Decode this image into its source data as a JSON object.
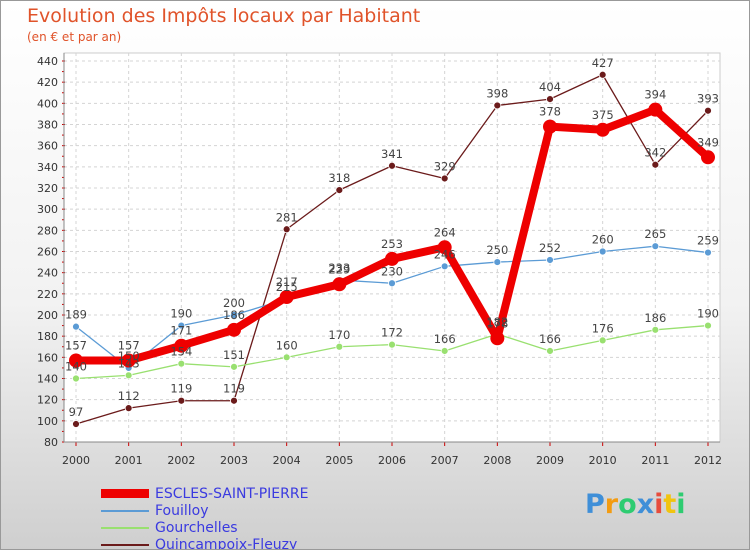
{
  "chart_data": {
    "type": "line",
    "title": "Evolution des Impôts locaux par Habitant",
    "subtitle": "(en € et par an)",
    "xlabel": "",
    "ylabel": "",
    "categories": [
      "2000",
      "2001",
      "2002",
      "2003",
      "2004",
      "2005",
      "2006",
      "2007",
      "2008",
      "2009",
      "2010",
      "2011",
      "2012"
    ],
    "ylim": [
      80,
      440
    ],
    "ytick_step": 20,
    "grid": true,
    "series": [
      {
        "name": "Quincampoix-Fleuzy",
        "color": "#6b1b1b",
        "width": 1.3,
        "marker": 3.5,
        "values": [
          97,
          112,
          119,
          119,
          281,
          318,
          341,
          329,
          398,
          404,
          427,
          342,
          393
        ],
        "labels": [
          "97",
          "112",
          "119",
          "119",
          "281",
          "318",
          "341",
          "329",
          "398",
          "404",
          "427",
          "342",
          "393"
        ]
      },
      {
        "name": "Gourchelles",
        "color": "#99e070",
        "width": 1.3,
        "marker": 3.5,
        "values": [
          140,
          143,
          154,
          151,
          160,
          170,
          172,
          166,
          182,
          166,
          176,
          186,
          190
        ],
        "labels": [
          "140",
          "143",
          "154",
          "151",
          "160",
          "170",
          "172",
          "166",
          "182",
          "166",
          "176",
          "186",
          "190"
        ]
      },
      {
        "name": "Fouilloy",
        "color": "#5b9bd5",
        "width": 1.3,
        "marker": 3.5,
        "values": [
          189,
          150,
          190,
          200,
          215,
          233,
          230,
          246,
          250,
          252,
          260,
          265,
          259
        ],
        "labels": [
          "189",
          "150",
          "190",
          "200",
          "215",
          "233",
          "230",
          "246",
          "250",
          "252",
          "260",
          "265",
          "259"
        ]
      },
      {
        "name": "ESCLES-SAINT-PIERRE",
        "color": "#ee0000",
        "width": 8,
        "marker": 7,
        "values": [
          157,
          157,
          171,
          186,
          217,
          229,
          253,
          264,
          178,
          378,
          375,
          394,
          349
        ],
        "labels": [
          "157",
          "157",
          "171",
          "186",
          "217",
          "229",
          "253",
          "264",
          "178",
          "378",
          "375",
          "394",
          "349"
        ]
      }
    ]
  },
  "legend": {
    "items": [
      {
        "label": "ESCLES-SAINT-PIERRE",
        "color": "#ee0000",
        "thickness": 9
      },
      {
        "label": "Fouilloy",
        "color": "#5b9bd5",
        "thickness": 2
      },
      {
        "label": "Gourchelles",
        "color": "#99e070",
        "thickness": 2
      },
      {
        "label": "Quincampoix-Fleuzy",
        "color": "#6b1b1b",
        "thickness": 2
      }
    ]
  },
  "logo": {
    "letters": [
      "P",
      "r",
      "o",
      "x",
      "i",
      "t",
      "i"
    ],
    "colors": [
      "#3f8fd8",
      "#f39c12",
      "#2ecc71",
      "#3f8fd8",
      "#e74c3c",
      "#f1c40f",
      "#2ecc71"
    ]
  }
}
